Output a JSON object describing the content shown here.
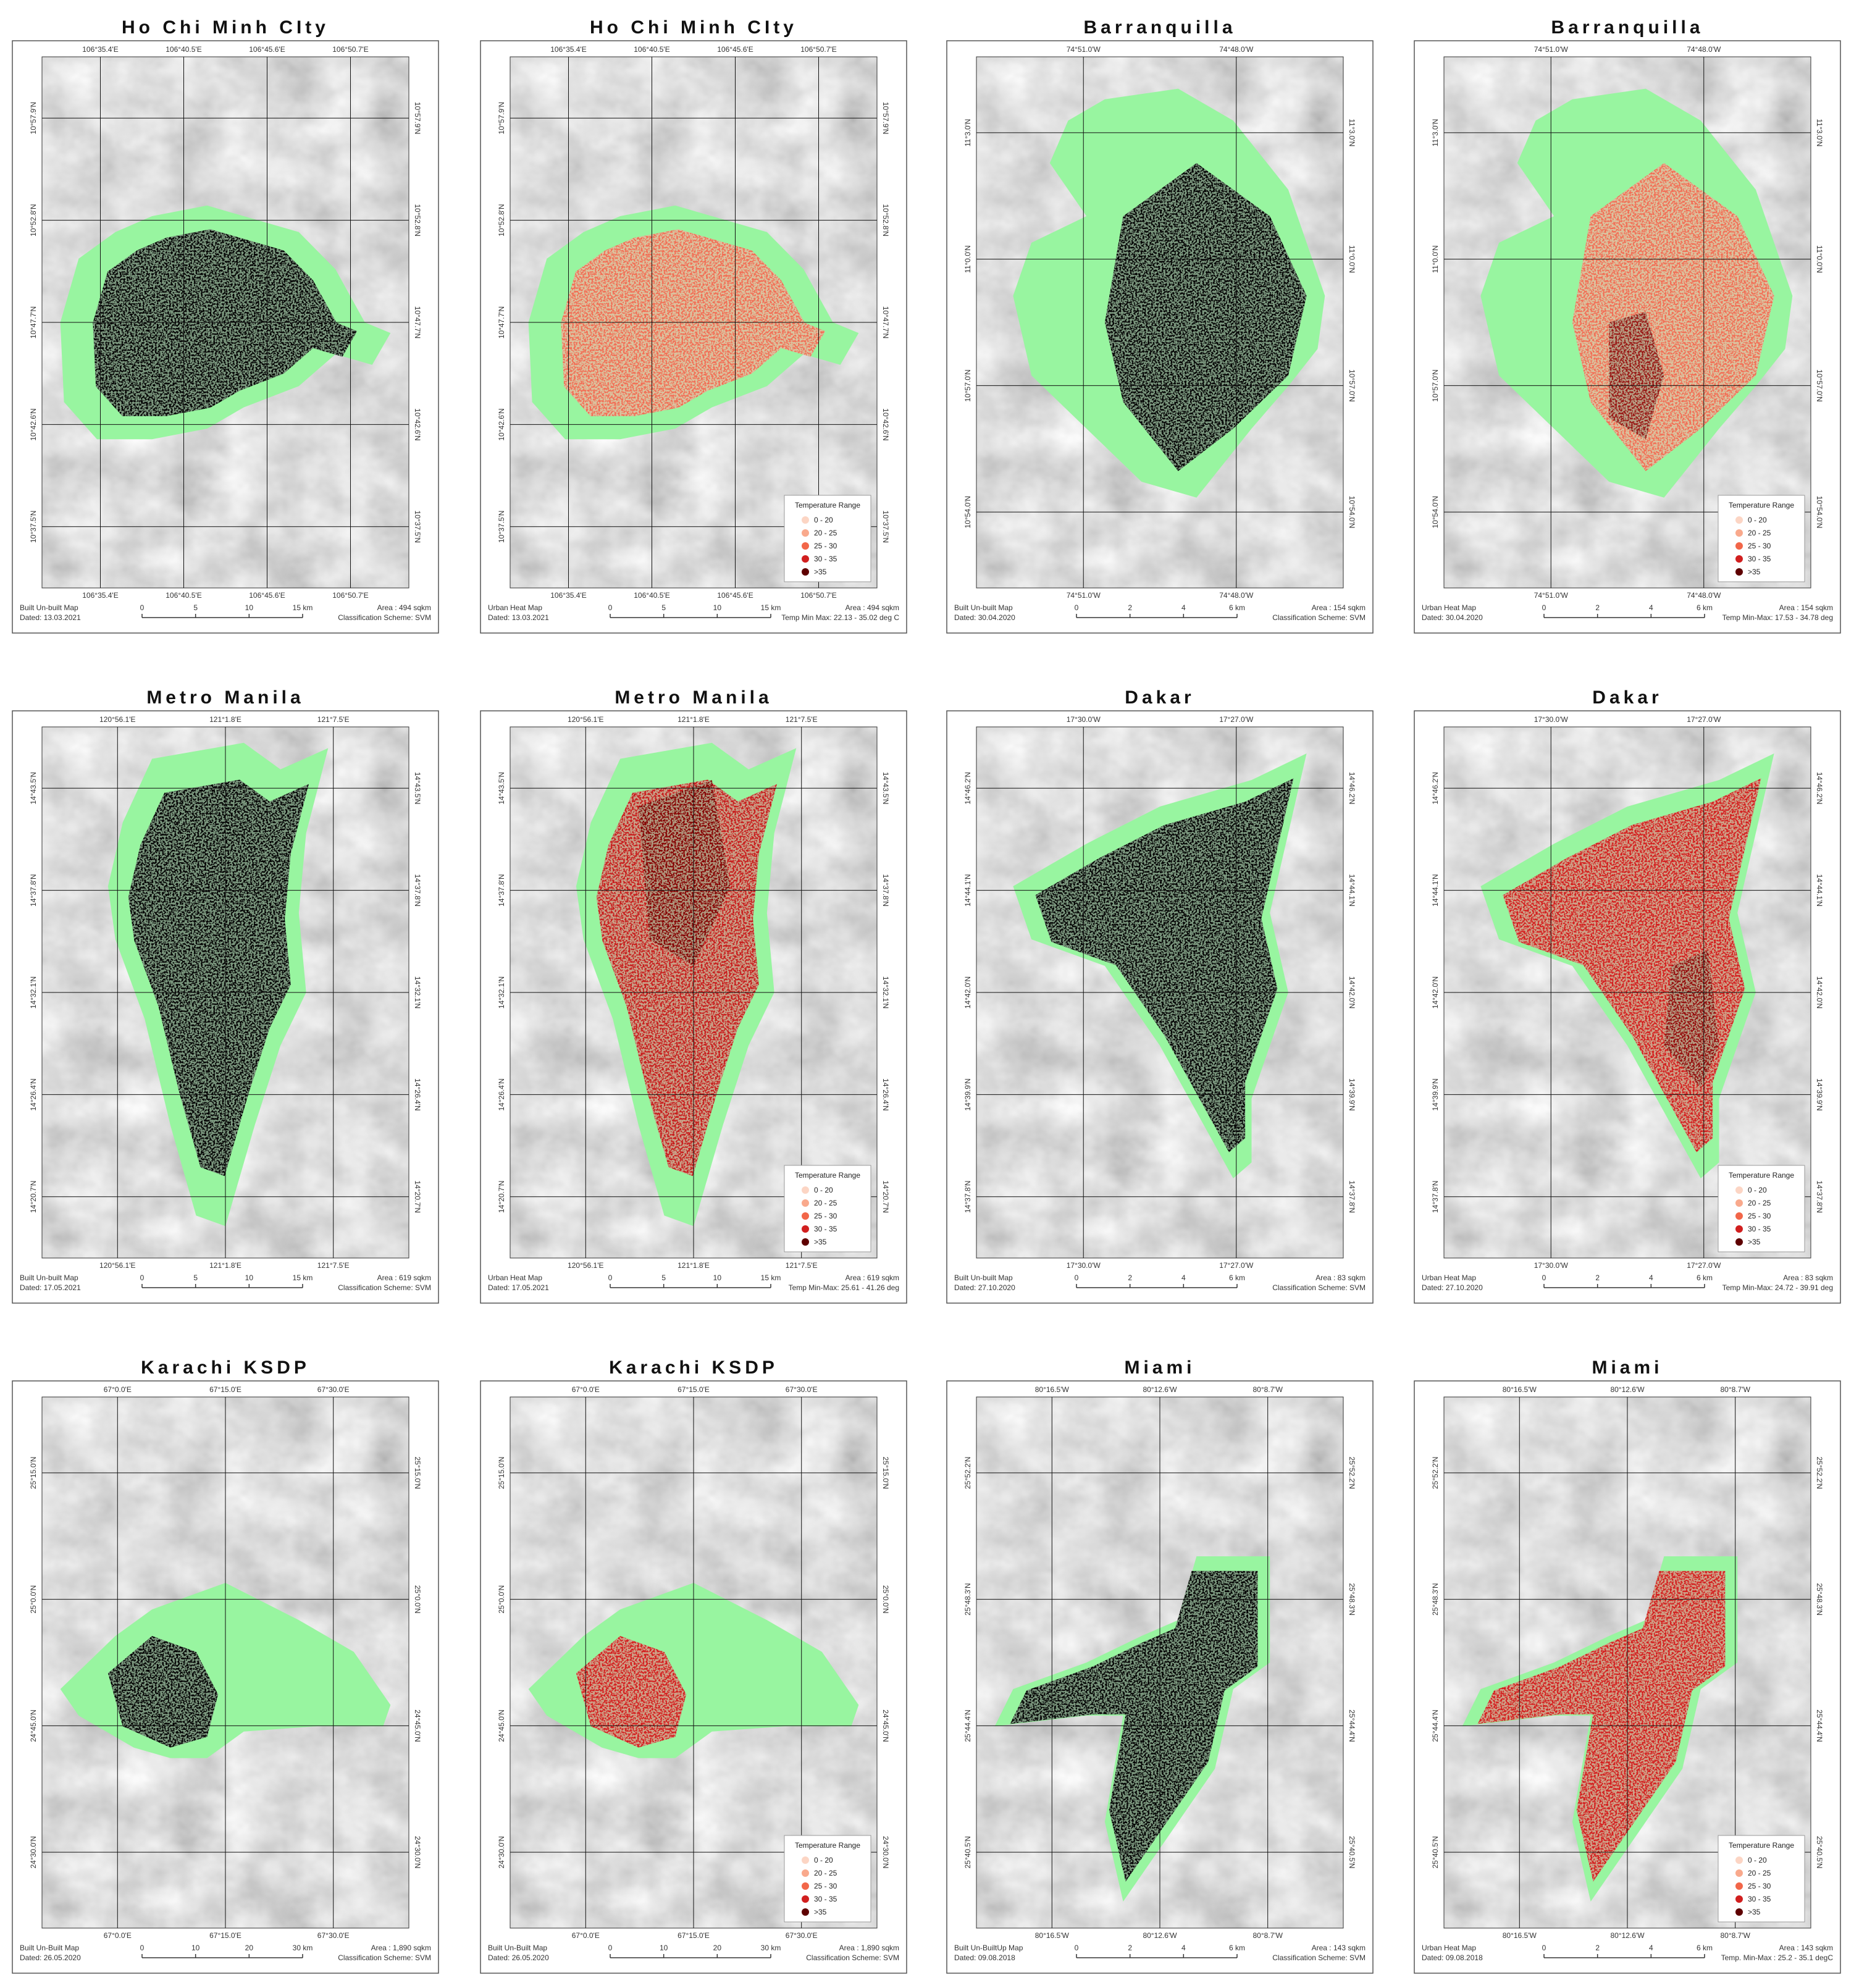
{
  "legend": {
    "title": "Temperature Range",
    "items": [
      {
        "label": "0 - 20",
        "color": "#fcd5c4"
      },
      {
        "label": "20 - 25",
        "color": "#f9a98c"
      },
      {
        "label": "25 - 30",
        "color": "#f26649"
      },
      {
        "label": "30 - 35",
        "color": "#d11f1f"
      },
      {
        "label": ">35",
        "color": "#5e0000"
      }
    ]
  },
  "panels": [
    {
      "title": "Ho Chi Minh CIty",
      "lon_labels": [
        "106°35.4'E",
        "106°40.5'E",
        "106°45.6'E",
        "106°50.7'E"
      ],
      "lat_labels": [
        "10°57.9'N",
        "10°52.8'N",
        "10°47.7'N",
        "10°42.6'N",
        "10°37.5'N"
      ],
      "footer_left": [
        "Built Un-built Map",
        "Dated: 13.03.2021"
      ],
      "scale": [
        "0",
        "5",
        "10",
        "15 km"
      ],
      "footer_right": [
        "Area : 494 sqkm",
        "Classification Scheme: SVM"
      ],
      "show_legend": false
    },
    {
      "title": "Ho Chi Minh CIty",
      "lon_labels": [
        "106°35.4'E",
        "106°40.5'E",
        "106°45.6'E",
        "106°50.7'E"
      ],
      "lat_labels": [
        "10°57.9'N",
        "10°52.8'N",
        "10°47.7'N",
        "10°42.6'N",
        "10°37.5'N"
      ],
      "footer_left": [
        "Urban Heat Map",
        "Dated: 13.03.2021"
      ],
      "scale": [
        "0",
        "5",
        "10",
        "15 km"
      ],
      "footer_right": [
        "Area : 494 sqkm",
        "Temp Min Max: 22.13 - 35.02 deg C"
      ],
      "show_legend": true
    },
    {
      "title": "Barranquilla",
      "lon_labels": [
        "74°51.0'W",
        "74°48.0'W"
      ],
      "lat_labels": [
        "11°3.0'N",
        "11°0.0'N",
        "10°57.0'N",
        "10°54.0'N"
      ],
      "footer_left": [
        "Built Un-built Map",
        "Dated: 30.04.2020"
      ],
      "scale": [
        "0",
        "2",
        "4",
        "6 km"
      ],
      "footer_right": [
        "Area : 154 sqkm",
        "Classification Scheme: SVM"
      ],
      "show_legend": false
    },
    {
      "title": "Barranquilla",
      "lon_labels": [
        "74°51.0'W",
        "74°48.0'W"
      ],
      "lat_labels": [
        "11°3.0'N",
        "11°0.0'N",
        "10°57.0'N",
        "10°54.0'N"
      ],
      "footer_left": [
        "Urban Heat Map",
        "Dated: 30.04.2020"
      ],
      "scale": [
        "0",
        "2",
        "4",
        "6 km"
      ],
      "footer_right": [
        "Area : 154 sqkm",
        "Temp Min-Max: 17.53 - 34.78 deg"
      ],
      "show_legend": true
    },
    {
      "title": "Metro Manila",
      "lon_labels": [
        "120°56.1'E",
        "121°1.8'E",
        "121°7.5'E"
      ],
      "lat_labels": [
        "14°43.5'N",
        "14°37.8'N",
        "14°32.1'N",
        "14°26.4'N",
        "14°20.7'N"
      ],
      "footer_left": [
        "Built Un-built Map",
        "Dated: 17.05.2021"
      ],
      "scale": [
        "0",
        "5",
        "10",
        "15 km"
      ],
      "footer_right": [
        "Area : 619 sqkm",
        "Classification Scheme: SVM"
      ],
      "show_legend": false
    },
    {
      "title": "Metro Manila",
      "lon_labels": [
        "120°56.1'E",
        "121°1.8'E",
        "121°7.5'E"
      ],
      "lat_labels": [
        "14°43.5'N",
        "14°37.8'N",
        "14°32.1'N",
        "14°26.4'N",
        "14°20.7'N"
      ],
      "footer_left": [
        "Urban Heat Map",
        "Dated: 17.05.2021"
      ],
      "scale": [
        "0",
        "5",
        "10",
        "15 km"
      ],
      "footer_right": [
        "Area : 619 sqkm",
        "Temp Min-Max: 25.61 - 41.26 deg"
      ],
      "show_legend": true
    },
    {
      "title": "Dakar",
      "lon_labels": [
        "17°30.0'W",
        "17°27.0'W"
      ],
      "lat_labels": [
        "14°46.2'N",
        "14°44.1'N",
        "14°42.0'N",
        "14°39.9'N",
        "14°37.8'N"
      ],
      "footer_left": [
        "Built Un-built Map",
        "Dated: 27.10.2020"
      ],
      "scale": [
        "0",
        "2",
        "4",
        "6 km"
      ],
      "footer_right": [
        "Area : 83 sqkm",
        "Classification Scheme: SVM"
      ],
      "show_legend": false
    },
    {
      "title": "Dakar",
      "lon_labels": [
        "17°30.0'W",
        "17°27.0'W"
      ],
      "lat_labels": [
        "14°46.2'N",
        "14°44.1'N",
        "14°42.0'N",
        "14°39.9'N",
        "14°37.8'N"
      ],
      "footer_left": [
        "Urban Heat Map",
        "Dated: 27.10.2020"
      ],
      "scale": [
        "0",
        "2",
        "4",
        "6 km"
      ],
      "footer_right": [
        "Area : 83 sqkm",
        "Temp Min-Max: 24.72 - 39.91 deg"
      ],
      "show_legend": true
    },
    {
      "title": "Karachi KSDP",
      "lon_labels": [
        "67°0.0'E",
        "67°15.0'E",
        "67°30.0'E"
      ],
      "lat_labels": [
        "25°15.0'N",
        "25°0.0'N",
        "24°45.0'N",
        "24°30.0'N"
      ],
      "footer_left": [
        "Built Un-Built Map",
        "Dated: 26.05.2020"
      ],
      "scale": [
        "0",
        "10",
        "20",
        "30 km"
      ],
      "footer_right": [
        "Area : 1,890 sqkm",
        "Classification Scheme: SVM"
      ],
      "show_legend": false
    },
    {
      "title": "Karachi KSDP",
      "lon_labels": [
        "67°0.0'E",
        "67°15.0'E",
        "67°30.0'E"
      ],
      "lat_labels": [
        "25°15.0'N",
        "25°0.0'N",
        "24°45.0'N",
        "24°30.0'N"
      ],
      "footer_left": [
        "Built Un-Built Map",
        "Dated: 26.05.2020"
      ],
      "scale": [
        "0",
        "10",
        "20",
        "30 km"
      ],
      "footer_right": [
        "Area : 1,890 sqkm",
        "Classification Scheme: SVM"
      ],
      "show_legend": true
    },
    {
      "title": "Miami",
      "lon_labels": [
        "80°16.5'W",
        "80°12.6'W",
        "80°8.7'W"
      ],
      "lat_labels": [
        "25°52.2'N",
        "25°48.3'N",
        "25°44.4'N",
        "25°40.5'N"
      ],
      "footer_left": [
        "Built Un-BuiltUp Map",
        "Dated: 09.08.2018"
      ],
      "scale": [
        "0",
        "2",
        "4",
        "6 km"
      ],
      "footer_right": [
        "Area : 143 sqkm",
        "Classification Scheme: SVM"
      ],
      "show_legend": false
    },
    {
      "title": "Miami",
      "lon_labels": [
        "80°16.5'W",
        "80°12.6'W",
        "80°8.7'W"
      ],
      "lat_labels": [
        "25°52.2'N",
        "25°48.3'N",
        "25°44.4'N",
        "25°40.5'N"
      ],
      "footer_left": [
        "Urban Heat Map",
        "Dated: 09.08.2018"
      ],
      "scale": [
        "0",
        "2",
        "4",
        "6 km"
      ],
      "footer_right": [
        "Area : 143 sqkm",
        "Temp. Min-Max : 25.2 - 35.1 degC"
      ],
      "show_legend": true
    }
  ]
}
